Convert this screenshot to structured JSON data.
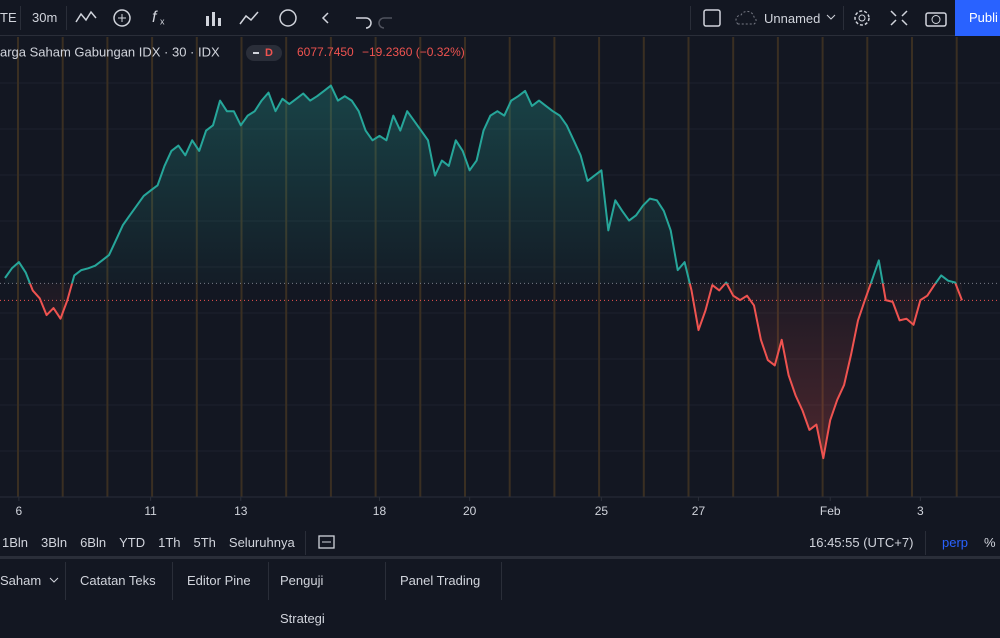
{
  "toolbar": {
    "symbol": "TE",
    "interval": "30m",
    "layout_name": "Unnamed",
    "publish": "Publi"
  },
  "chart_data": {
    "type": "baseline",
    "title": "arga Saham Gabungan IDX · 30 · IDX",
    "badge": "D",
    "price": "6077.7450",
    "change": "−19.2360 (−0.32%)",
    "values": [
      6103,
      6114,
      6121,
      6109,
      6089,
      6080,
      6061,
      6069,
      6057,
      6078,
      6106,
      6112,
      6114,
      6117,
      6123,
      6129,
      6146,
      6163,
      6174,
      6185,
      6196,
      6202,
      6208,
      6230,
      6247,
      6253,
      6242,
      6259,
      6247,
      6270,
      6276,
      6304,
      6292,
      6292,
      6276,
      6287,
      6292,
      6304,
      6313,
      6292,
      6306,
      6300,
      6306,
      6312,
      6304,
      6309,
      6315,
      6321,
      6304,
      6309,
      6304,
      6292,
      6270,
      6259,
      6264,
      6259,
      6287,
      6270,
      6292,
      6281,
      6270,
      6259,
      6219,
      6236,
      6230,
      6259,
      6247,
      6225,
      6236,
      6270,
      6287,
      6292,
      6287,
      6304,
      6309,
      6315,
      6298,
      6304,
      6298,
      6292,
      6287,
      6276,
      6259,
      6242,
      6213,
      6219,
      6225,
      6157,
      6191,
      6179,
      6168,
      6174,
      6185,
      6193,
      6191,
      6179,
      6157,
      6112,
      6121,
      6089,
      6044,
      6066,
      6095,
      6089,
      6098,
      6083,
      6078,
      6083,
      6072,
      6033,
      6010,
      6004,
      6033,
      5993,
      5970,
      5953,
      5931,
      5937,
      5899,
      5942,
      5965,
      5982,
      6016,
      6055,
      6078,
      6100,
      6123,
      6078,
      6076,
      6055,
      6057,
      6050,
      6078,
      6083,
      6095,
      6106,
      6100,
      6098,
      6077.745
    ],
    "color_up": "#26a69a",
    "color_down": "#ef5350",
    "baseline": 6097,
    "ylim": [
      5855,
      6376
    ],
    "xlim": [
      0,
      138
    ],
    "xticks": [
      {
        "value": 2,
        "label": "6"
      },
      {
        "value": 21,
        "label": "11"
      },
      {
        "value": 34,
        "label": "13"
      },
      {
        "value": 54,
        "label": "18"
      },
      {
        "value": 67,
        "label": "20"
      },
      {
        "value": 86,
        "label": "25"
      },
      {
        "value": 100,
        "label": "27"
      },
      {
        "value": 119,
        "label": "Feb"
      },
      {
        "value": 132,
        "label": "3"
      }
    ]
  },
  "range_bar": {
    "ranges": [
      "1Bln",
      "3Bln",
      "6Bln",
      "YTD",
      "1Th",
      "5Th",
      "Seluruhnya"
    ],
    "clock": "16:45:55 (UTC+7)",
    "scale": "perp",
    "percent": "%"
  },
  "tabs": [
    "Saham",
    "Catatan Teks",
    "Editor Pine",
    "Penguji Strategi",
    "Panel Trading"
  ]
}
